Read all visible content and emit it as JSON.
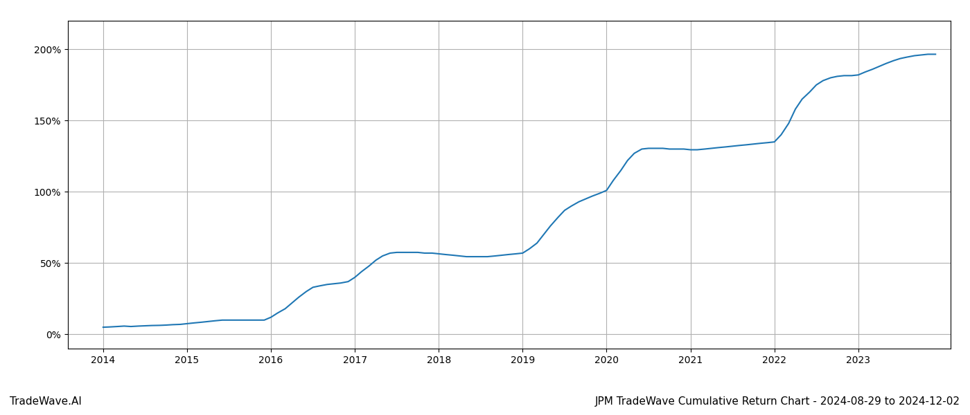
{
  "chart_data": {
    "type": "line",
    "title": "JPM TradeWave Cumulative Return Chart - 2024-08-29 to 2024-12-02",
    "annotations": [
      "TradeWave.AI"
    ],
    "x": [
      2014.0,
      2014.08,
      2014.17,
      2014.25,
      2014.33,
      2014.42,
      2014.5,
      2014.58,
      2014.67,
      2014.75,
      2014.83,
      2014.92,
      2015.0,
      2015.08,
      2015.17,
      2015.25,
      2015.33,
      2015.42,
      2015.5,
      2015.58,
      2015.67,
      2015.75,
      2015.83,
      2015.92,
      2016.0,
      2016.08,
      2016.17,
      2016.25,
      2016.33,
      2016.42,
      2016.5,
      2016.58,
      2016.67,
      2016.75,
      2016.83,
      2016.92,
      2017.0,
      2017.08,
      2017.17,
      2017.25,
      2017.33,
      2017.42,
      2017.5,
      2017.58,
      2017.67,
      2017.75,
      2017.83,
      2017.92,
      2018.0,
      2018.08,
      2018.17,
      2018.25,
      2018.33,
      2018.42,
      2018.5,
      2018.58,
      2018.67,
      2018.75,
      2018.83,
      2018.92,
      2019.0,
      2019.08,
      2019.17,
      2019.25,
      2019.33,
      2019.42,
      2019.5,
      2019.58,
      2019.67,
      2019.75,
      2019.83,
      2019.92,
      2020.0,
      2020.08,
      2020.17,
      2020.25,
      2020.33,
      2020.42,
      2020.5,
      2020.58,
      2020.67,
      2020.75,
      2020.83,
      2020.92,
      2021.0,
      2021.08,
      2021.17,
      2021.25,
      2021.33,
      2021.42,
      2021.5,
      2021.58,
      2021.67,
      2021.75,
      2021.83,
      2021.92,
      2022.0,
      2022.08,
      2022.17,
      2022.25,
      2022.33,
      2022.42,
      2022.5,
      2022.58,
      2022.67,
      2022.75,
      2022.83,
      2022.92,
      2023.0,
      2023.08,
      2023.17,
      2023.25,
      2023.33,
      2023.42,
      2023.5,
      2023.58,
      2023.67,
      2023.75,
      2023.83,
      2023.92
    ],
    "values": [
      5,
      5.2,
      5.5,
      5.8,
      5.5,
      5.8,
      6.0,
      6.2,
      6.3,
      6.5,
      6.8,
      7.0,
      7.5,
      8.0,
      8.5,
      9.0,
      9.5,
      10.0,
      10.0,
      10.0,
      10.0,
      10.0,
      10.0,
      10.0,
      12.0,
      15.0,
      18.0,
      22.0,
      26.0,
      30.0,
      33.0,
      34.0,
      35.0,
      35.5,
      36.0,
      37.0,
      40.0,
      44.0,
      48.0,
      52.0,
      55.0,
      57.0,
      57.5,
      57.5,
      57.5,
      57.5,
      57.0,
      57.0,
      56.5,
      56.0,
      55.5,
      55.0,
      54.5,
      54.5,
      54.5,
      54.5,
      55.0,
      55.5,
      56.0,
      56.5,
      57.0,
      60.0,
      64.0,
      70.0,
      76.0,
      82.0,
      87.0,
      90.0,
      93.0,
      95.0,
      97.0,
      99.0,
      101.0,
      108.0,
      115.0,
      122.0,
      127.0,
      130.0,
      130.5,
      130.5,
      130.5,
      130.0,
      130.0,
      130.0,
      129.5,
      129.5,
      130.0,
      130.5,
      131.0,
      131.5,
      132.0,
      132.5,
      133.0,
      133.5,
      134.0,
      134.5,
      135.0,
      140.0,
      148.0,
      158.0,
      165.0,
      170.0,
      175.0,
      178.0,
      180.0,
      181.0,
      181.5,
      181.5,
      182.0,
      184.0,
      186.0,
      188.0,
      190.0,
      192.0,
      193.5,
      194.5,
      195.5,
      196.0,
      196.5,
      196.5
    ],
    "xlim": [
      2013.58,
      2024.1
    ],
    "xticks": [
      2014,
      2015,
      2016,
      2017,
      2018,
      2019,
      2020,
      2021,
      2022,
      2023
    ],
    "ylim": [
      -10,
      220
    ],
    "yticks": [
      {
        "value": 0,
        "label": "0%"
      },
      {
        "value": 50,
        "label": "50%"
      },
      {
        "value": 100,
        "label": "100%"
      },
      {
        "value": 150,
        "label": "150%"
      },
      {
        "value": 200,
        "label": "200%"
      }
    ],
    "grid": true
  }
}
